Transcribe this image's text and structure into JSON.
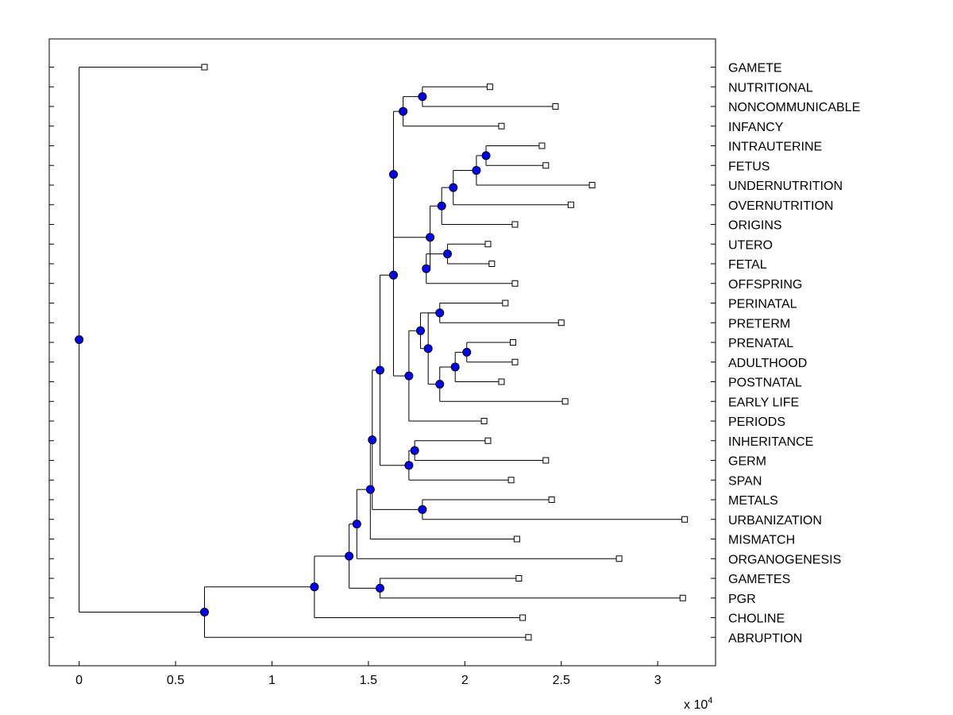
{
  "chart_data": {
    "type": "dendrogram",
    "title": "",
    "x_scale_label": "x 10",
    "x_scale_exponent": "4",
    "x_ticks": [
      {
        "value": 0,
        "label": "0"
      },
      {
        "value": 5000,
        "label": "0.5"
      },
      {
        "value": 10000,
        "label": "1"
      },
      {
        "value": 15000,
        "label": "1.5"
      },
      {
        "value": 20000,
        "label": "2"
      },
      {
        "value": 25000,
        "label": "2.5"
      },
      {
        "value": 30000,
        "label": "3"
      }
    ],
    "x_range": [
      -1550,
      33000
    ],
    "leaves": [
      {
        "label": "GAMETE",
        "x": 6500
      },
      {
        "label": "NUTRITIONAL",
        "x": 21300
      },
      {
        "label": "NONCOMMUNICABLE",
        "x": 24700
      },
      {
        "label": "INFANCY",
        "x": 21900
      },
      {
        "label": "INTRAUTERINE",
        "x": 24000
      },
      {
        "label": "FETUS",
        "x": 24200
      },
      {
        "label": "UNDERNUTRITION",
        "x": 26600
      },
      {
        "label": "OVERNUTRITION",
        "x": 25500
      },
      {
        "label": "ORIGINS",
        "x": 22600
      },
      {
        "label": "UTERO",
        "x": 21200
      },
      {
        "label": "FETAL",
        "x": 21400
      },
      {
        "label": "OFFSPRING",
        "x": 22600
      },
      {
        "label": "PERINATAL",
        "x": 22100
      },
      {
        "label": "PRETERM",
        "x": 25000
      },
      {
        "label": "PRENATAL",
        "x": 22500
      },
      {
        "label": "ADULTHOOD",
        "x": 22600
      },
      {
        "label": "POSTNATAL",
        "x": 21900
      },
      {
        "label": "EARLY LIFE",
        "x": 25200
      },
      {
        "label": "PERIODS",
        "x": 21000
      },
      {
        "label": "INHERITANCE",
        "x": 21200
      },
      {
        "label": "GERM",
        "x": 24200
      },
      {
        "label": "SPAN",
        "x": 22400
      },
      {
        "label": "METALS",
        "x": 24500
      },
      {
        "label": "URBANIZATION",
        "x": 31400
      },
      {
        "label": "MISMATCH",
        "x": 22700
      },
      {
        "label": "ORGANOGENESIS",
        "x": 28000
      },
      {
        "label": "GAMETES",
        "x": 22800
      },
      {
        "label": "PGR",
        "x": 31300
      },
      {
        "label": "CHOLINE",
        "x": 23000
      },
      {
        "label": "ABRUPTION",
        "x": 23300
      }
    ],
    "merges": [
      {
        "id": "m1",
        "a": "L1",
        "b": "L2",
        "x": 17800
      },
      {
        "id": "m2",
        "a": "m1",
        "b": "L3",
        "x": 16800
      },
      {
        "id": "m3",
        "a": "L4",
        "b": "L5",
        "x": 21100
      },
      {
        "id": "m4",
        "a": "m3",
        "b": "L6",
        "x": 20600
      },
      {
        "id": "m5",
        "a": "m4",
        "b": "L7",
        "x": 19400
      },
      {
        "id": "m6",
        "a": "m5",
        "b": "L8",
        "x": 18800
      },
      {
        "id": "m7",
        "a": "L9",
        "b": "L10",
        "x": 19100
      },
      {
        "id": "m8",
        "a": "m7",
        "b": "L11",
        "x": 18000
      },
      {
        "id": "m9",
        "a": "m6",
        "b": "m8",
        "x": 18200
      },
      {
        "id": "m10",
        "a": "L12",
        "b": "L13",
        "x": 18700
      },
      {
        "id": "m11",
        "a": "L15",
        "b": "L14",
        "x": 20100
      },
      {
        "id": "m12",
        "a": "m11",
        "b": "L16",
        "x": 19500
      },
      {
        "id": "m13",
        "a": "m12",
        "b": "L17",
        "x": 18700
      },
      {
        "id": "m14",
        "a": "m13",
        "b": "m10",
        "x": 18100
      },
      {
        "id": "m15",
        "a": "m10",
        "b": "m14",
        "x": 17700
      },
      {
        "id": "m16",
        "a": "m15",
        "b": "L18",
        "x": 17100
      },
      {
        "id": "m17",
        "a": "m2",
        "b": "m9",
        "x": 16300
      },
      {
        "id": "m18",
        "a": "m17",
        "b": "m16",
        "x": 16300
      },
      {
        "id": "m19",
        "a": "L19",
        "b": "L20",
        "x": 17400
      },
      {
        "id": "m20",
        "a": "m19",
        "b": "L21",
        "x": 17100
      },
      {
        "id": "m21",
        "a": "m18",
        "b": "m20",
        "x": 15600
      },
      {
        "id": "m22",
        "a": "L22",
        "b": "L23",
        "x": 17800
      },
      {
        "id": "m23",
        "a": "m21",
        "b": "m22",
        "x": 15200
      },
      {
        "id": "m24",
        "a": "m23",
        "b": "L24",
        "x": 15100
      },
      {
        "id": "m25",
        "a": "m24",
        "b": "L25",
        "x": 14400
      },
      {
        "id": "m26",
        "a": "L26",
        "b": "L27",
        "x": 15600
      },
      {
        "id": "m27",
        "a": "m25",
        "b": "m26",
        "x": 14000
      },
      {
        "id": "m28",
        "a": "m27",
        "b": "L28",
        "x": 12200
      },
      {
        "id": "m29",
        "a": "m28",
        "b": "L29",
        "x": 6500
      },
      {
        "id": "m30",
        "a": "L0",
        "b": "m29",
        "x": 0
      }
    ]
  }
}
